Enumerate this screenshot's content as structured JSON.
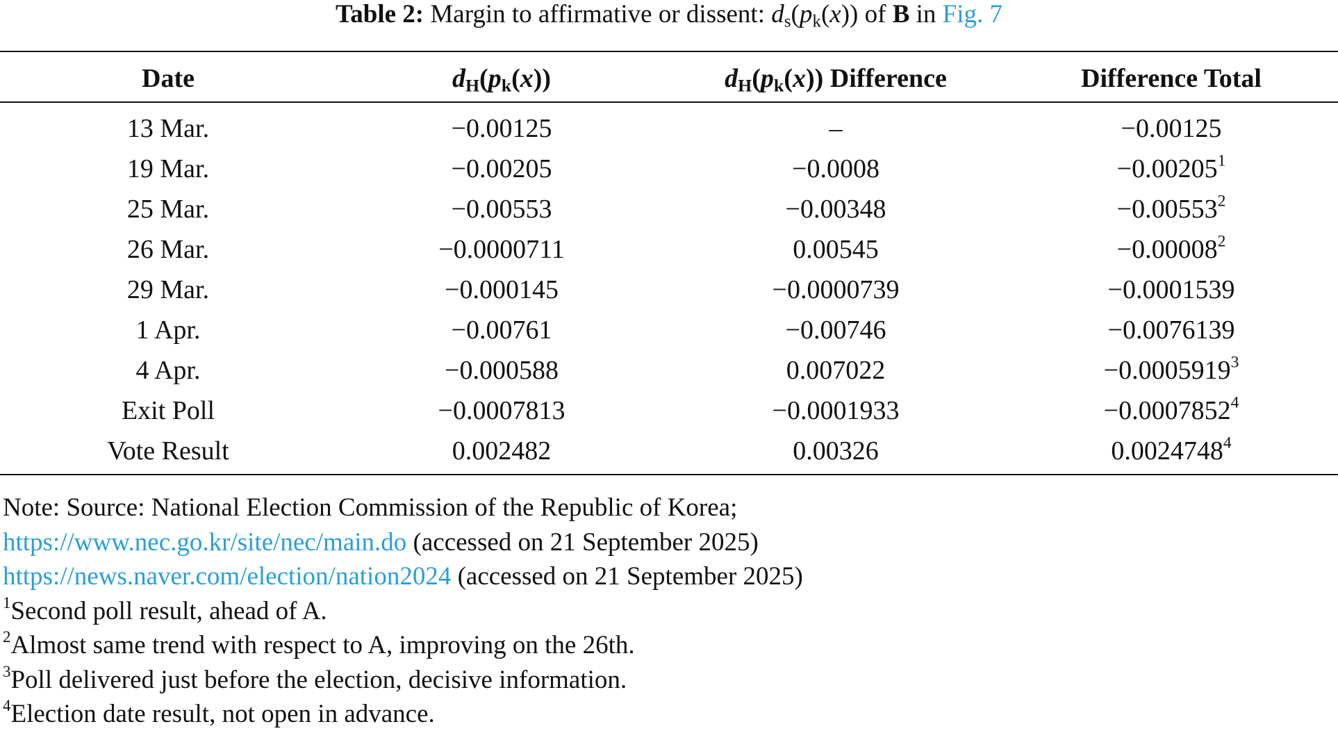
{
  "caption": [
    {
      "b": "Table 2:"
    },
    " Margin to affirmative or dissent: ",
    {
      "i": "d"
    },
    {
      "sub": "s"
    },
    "(",
    {
      "i": "p"
    },
    {
      "sub": "k"
    },
    "(",
    {
      "i": "x"
    },
    "))",
    " of ",
    {
      "b": "B"
    },
    " in ",
    {
      "link": "Fig. 7"
    }
  ],
  "table": {
    "header": [
      "Date",
      [
        {
          "bi": "d"
        },
        {
          "sub": "H"
        },
        "(",
        {
          "bi": "p"
        },
        {
          "sub": "k"
        },
        "(",
        {
          "bi": "x"
        },
        "))"
      ],
      [
        {
          "bi": "d"
        },
        {
          "sub": "H"
        },
        "(",
        {
          "bi": "p"
        },
        {
          "sub": "k"
        },
        "(",
        {
          "bi": "x"
        },
        "))",
        " Difference"
      ],
      "Difference Total"
    ],
    "rows": [
      [
        "13 Mar.",
        "−0.00125",
        "–",
        "−0.00125"
      ],
      [
        "19 Mar.",
        "−0.00205",
        "−0.0008",
        [
          "−0.00205",
          {
            "sup": "1"
          }
        ]
      ],
      [
        "25 Mar.",
        "−0.00553",
        "−0.00348",
        [
          "−0.00553",
          {
            "sup": "2"
          }
        ]
      ],
      [
        "26 Mar.",
        "−0.0000711",
        "0.00545",
        [
          "−0.00008",
          {
            "sup": "2"
          }
        ]
      ],
      [
        "29 Mar.",
        "−0.000145",
        "−0.0000739",
        "−0.0001539"
      ],
      [
        "1 Apr.",
        "−0.00761",
        "−0.00746",
        "−0.0076139"
      ],
      [
        "4 Apr.",
        "−0.000588",
        "0.007022",
        [
          "−0.0005919",
          {
            "sup": "3"
          }
        ]
      ],
      [
        "Exit Poll",
        "−0.0007813",
        "−0.0001933",
        [
          "−0.0007852",
          {
            "sup": "4"
          }
        ]
      ],
      [
        "Vote Result",
        "0.002482",
        "0.00326",
        [
          "0.0024748",
          {
            "sup": "4"
          }
        ]
      ]
    ]
  },
  "notes": [
    [
      "Note: Source: National Election Commission of the Republic of Korea;"
    ],
    [
      {
        "link": "https://www.nec.go.kr/site/nec/main.do"
      },
      " (accessed on 21 September 2025)"
    ],
    [
      {
        "link": "https://news.naver.com/election/nation2024"
      },
      " (accessed on 21 September 2025)"
    ],
    [
      {
        "sup": "1"
      },
      "Second poll result, ahead of A."
    ],
    [
      {
        "sup": "2"
      },
      "Almost same trend with respect to A, improving on the 26th."
    ],
    [
      {
        "sup": "3"
      },
      "Poll delivered just before the election, decisive information."
    ],
    [
      {
        "sup": "4"
      },
      "Election date result, not open in advance."
    ]
  ]
}
